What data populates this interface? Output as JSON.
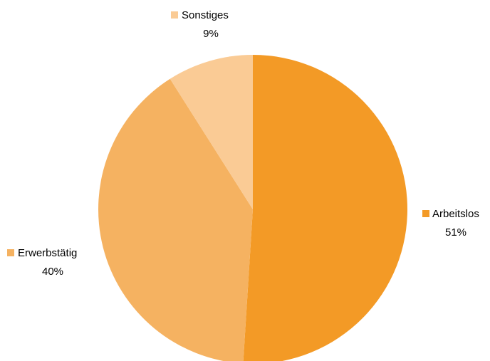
{
  "chart_data": {
    "type": "pie",
    "slices": [
      {
        "label": "Arbeitslos",
        "value": 51,
        "value_label": "51%",
        "color": "#F39A26"
      },
      {
        "label": "Erwerbstätig",
        "value": 40,
        "value_label": "40%",
        "color": "#F5B261"
      },
      {
        "label": "Sonstiges",
        "value": 9,
        "value_label": "9%",
        "color": "#FACB95"
      }
    ],
    "start": "12 o'clock",
    "direction": "clockwise",
    "legend": "none",
    "data_labels": "outside with category and percentage"
  }
}
